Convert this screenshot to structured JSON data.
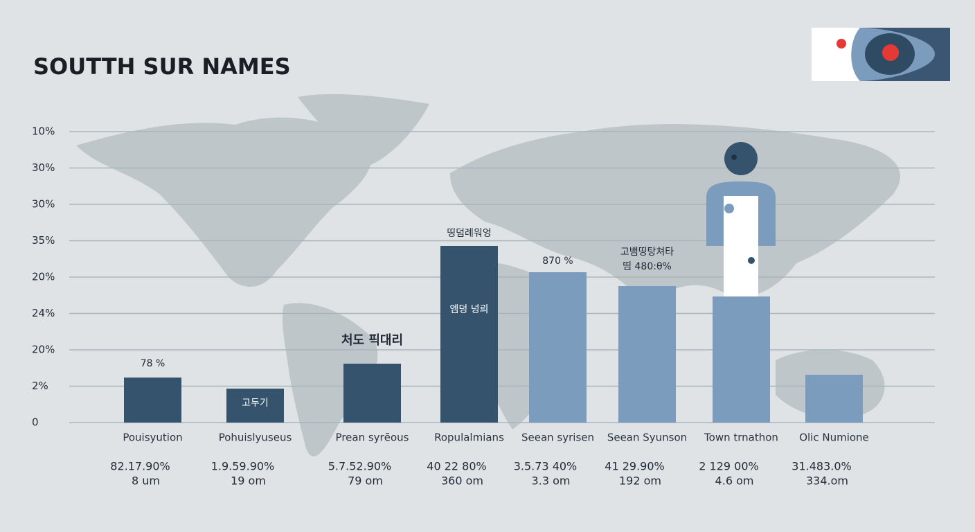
{
  "header": {
    "title": "SOUTTH SUR NAMES"
  },
  "axis_labels": [
    "10%",
    "30%",
    "30%",
    "35%",
    "20%",
    "24%",
    "20%",
    "2%",
    "0"
  ],
  "bars": [
    {
      "category": "Pouisyution",
      "above": [
        "78 %"
      ],
      "stats": [
        "82.17.90%",
        "8 um"
      ]
    },
    {
      "category": "Pohuislyuseus",
      "inside": "고두기",
      "stats": [
        "1.9.59.90%",
        "19 om"
      ]
    },
    {
      "category": "Prean syrēous",
      "above": [
        "처도 픽대리"
      ],
      "stats": [
        "5.7.52.90%",
        "79 om"
      ]
    },
    {
      "category": "Ropulalmians",
      "above": [
        "띵덤례워엉"
      ],
      "inside": "엠덩 넝릐",
      "stats": [
        "40 22 80%",
        "360 om"
      ]
    },
    {
      "category": "Seean syrisen",
      "above": [
        "870 %"
      ],
      "stats": [
        "3.5.73 40%",
        "3.3 om"
      ]
    },
    {
      "category": "Seean Syunson",
      "above": [
        "고뱀띵탕쳐타",
        "띰 480:θ%"
      ],
      "stats": [
        "41 29.90%",
        "192 om"
      ]
    },
    {
      "category": "Town trnathon",
      "stats": [
        "2 129 00%",
        "4.6 om"
      ]
    },
    {
      "category": "Olic Numione",
      "stats": [
        "31.483.0%",
        "334.om"
      ]
    }
  ]
}
